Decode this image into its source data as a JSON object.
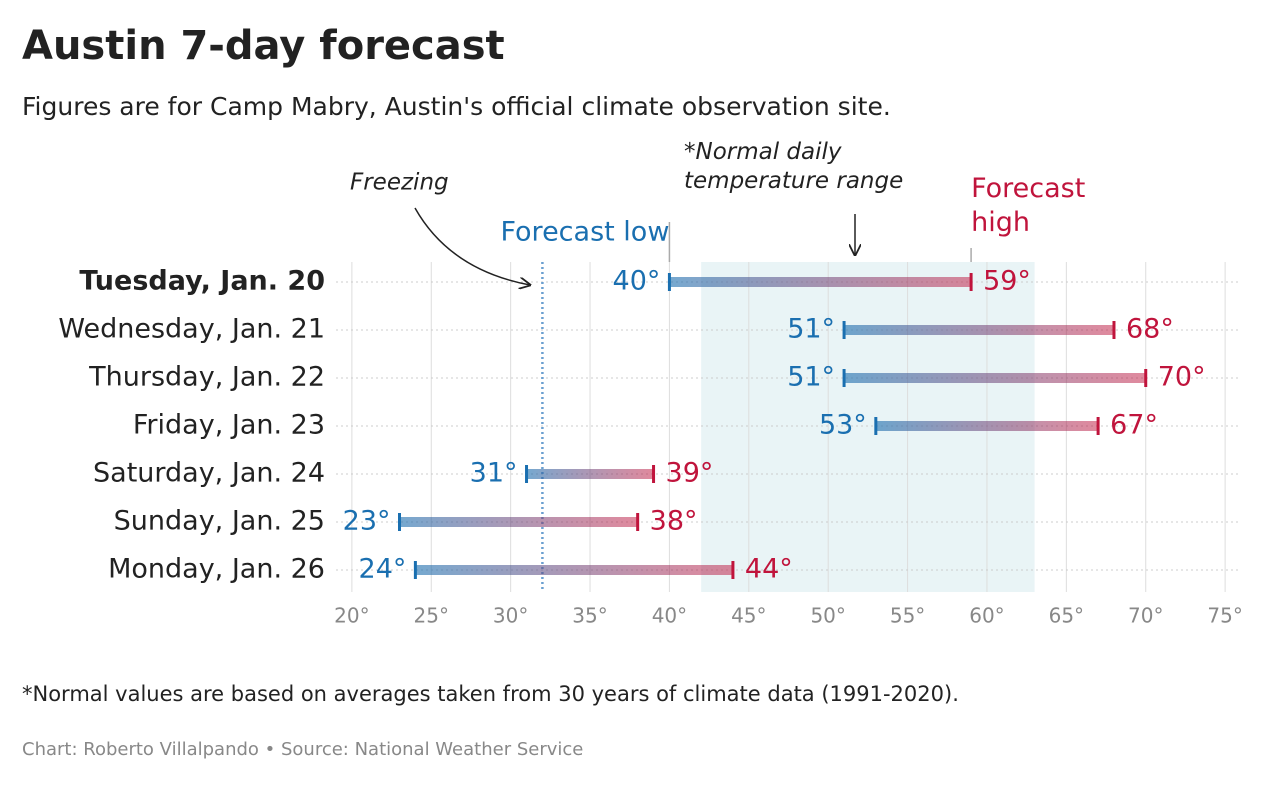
{
  "chart_data": {
    "type": "range",
    "title": "Austin 7-day forecast",
    "subtitle": "Figures are for Camp Mabry, Austin's official climate observation site.",
    "categories": [
      "Tuesday, Jan. 20",
      "Wednesday, Jan. 21",
      "Thursday, Jan. 22",
      "Friday, Jan. 23",
      "Saturday, Jan. 24",
      "Sunday, Jan. 25",
      "Monday, Jan. 26"
    ],
    "series": [
      {
        "name": "Forecast low",
        "color": "#1a6fb0",
        "values": [
          40,
          51,
          51,
          53,
          31,
          23,
          24
        ],
        "value_labels": [
          "40°",
          "51°",
          "51°",
          "53°",
          "31°",
          "23°",
          "24°"
        ]
      },
      {
        "name": "Forecast high",
        "color": "#c0143c",
        "values": [
          59,
          68,
          70,
          67,
          39,
          38,
          44
        ],
        "value_labels": [
          "59°",
          "68°",
          "70°",
          "67°",
          "39°",
          "38°",
          "44°"
        ]
      }
    ],
    "xlim": [
      19,
      76
    ],
    "xticks": [
      {
        "value": 20,
        "label": "20°"
      },
      {
        "value": 25,
        "label": "25°"
      },
      {
        "value": 30,
        "label": "30°"
      },
      {
        "value": 35,
        "label": "35°"
      },
      {
        "value": 40,
        "label": "40°"
      },
      {
        "value": 45,
        "label": "45°"
      },
      {
        "value": 50,
        "label": "50°"
      },
      {
        "value": 55,
        "label": "55°"
      },
      {
        "value": 60,
        "label": "60°"
      },
      {
        "value": 65,
        "label": "65°"
      },
      {
        "value": 70,
        "label": "70°"
      },
      {
        "value": 75,
        "label": "75°"
      }
    ],
    "grid": true,
    "freezing": 32,
    "freezing_label": "Freezing",
    "normal_range": [
      42,
      63
    ],
    "normal_label": "*Normal daily temperature range",
    "note": "*Normal values are based on averages taken from 30 years of climate data (1991-2020).",
    "credit": "Chart: Roberto Villalpando • Source: National Weather Service"
  }
}
